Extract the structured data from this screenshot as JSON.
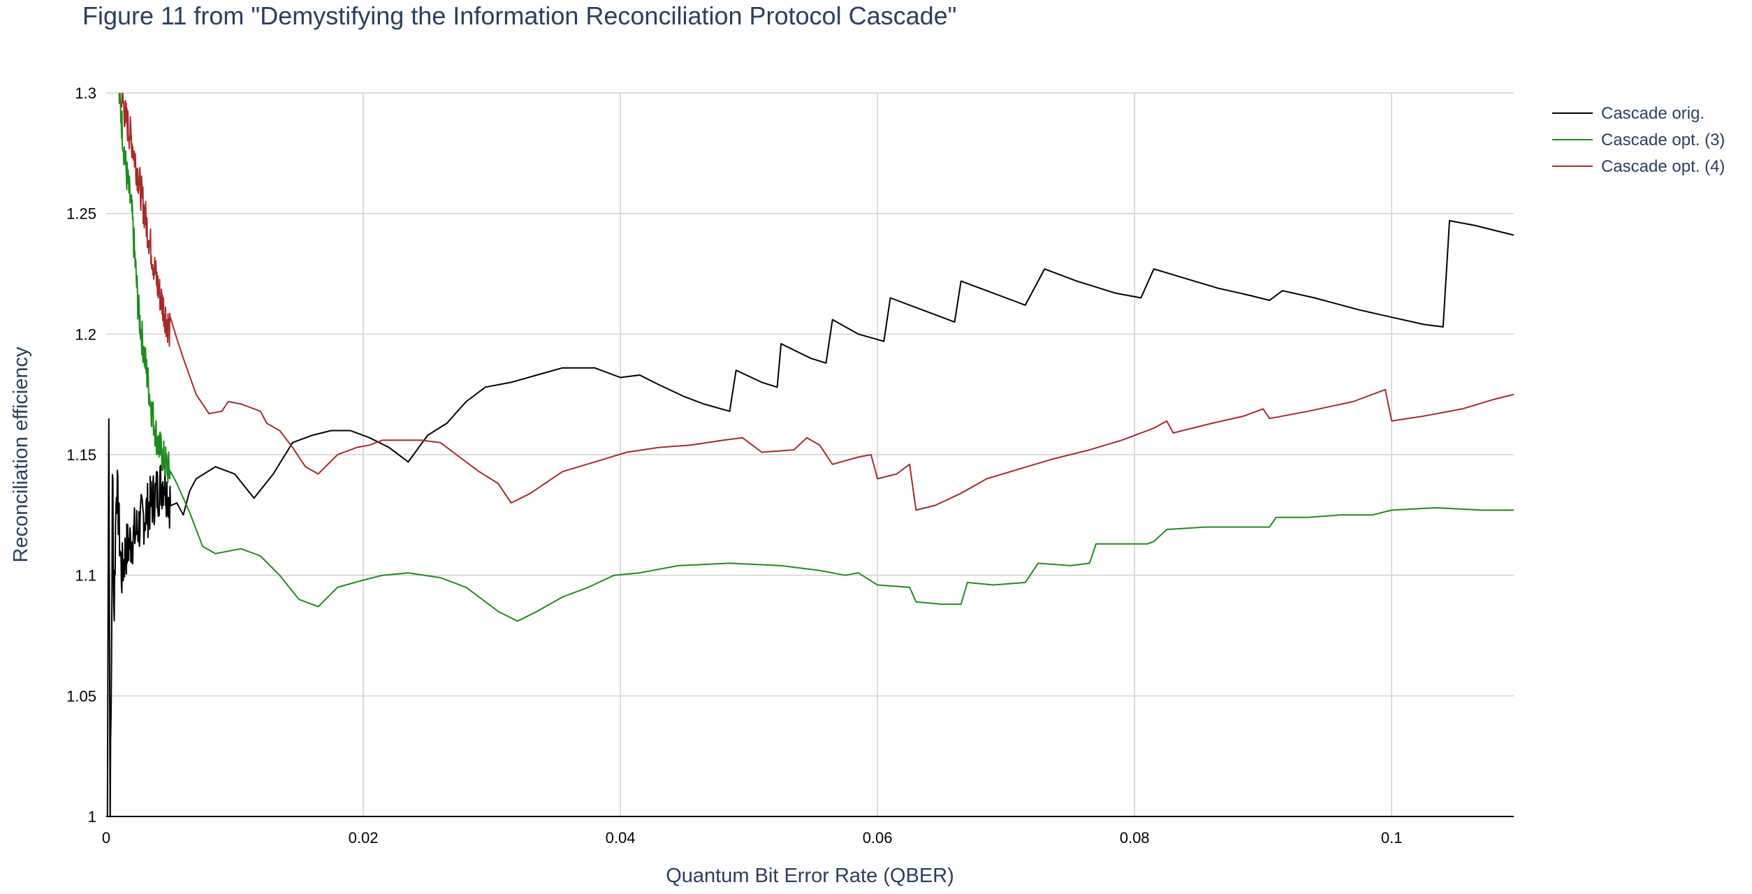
{
  "chart_data": {
    "type": "line",
    "title": "Figure 11 from \"Demystifying the Information Reconciliation Protocol Cascade\"",
    "xlabel": "Quantum Bit Error Rate (QBER)",
    "ylabel": "Reconciliation efficiency",
    "xlim": [
      0,
      0.1095
    ],
    "ylim": [
      1,
      1.3
    ],
    "x_ticks": [
      0,
      0.02,
      0.04,
      0.06,
      0.08,
      0.1
    ],
    "x_tick_labels": [
      "0",
      "0.02",
      "0.04",
      "0.06",
      "0.08",
      "0.1"
    ],
    "y_ticks": [
      1,
      1.05,
      1.1,
      1.15,
      1.2,
      1.25,
      1.3
    ],
    "y_tick_labels": [
      "1",
      "1.05",
      "1.1",
      "1.15",
      "1.2",
      "1.25",
      "1.3"
    ],
    "grid": true,
    "legend_position": "top-right",
    "series": [
      {
        "name": "Cascade orig.",
        "color": "#000000",
        "noise_until": 0.005,
        "points": [
          [
            0.0001,
            1.0
          ],
          [
            0.0002,
            1.18
          ],
          [
            0.0003,
            1.0
          ],
          [
            0.0004,
            1.05
          ],
          [
            0.0005,
            1.15
          ],
          [
            0.0006,
            1.08
          ],
          [
            0.0008,
            1.14
          ],
          [
            0.001,
            1.12
          ],
          [
            0.0012,
            1.1
          ],
          [
            0.0015,
            1.11
          ],
          [
            0.002,
            1.115
          ],
          [
            0.0025,
            1.12
          ],
          [
            0.003,
            1.125
          ],
          [
            0.0035,
            1.13
          ],
          [
            0.004,
            1.135
          ],
          [
            0.0045,
            1.14
          ],
          [
            0.005,
            1.13
          ],
          [
            0.0055,
            1.13
          ],
          [
            0.006,
            1.125
          ],
          [
            0.0065,
            1.135
          ],
          [
            0.007,
            1.14
          ],
          [
            0.0085,
            1.145
          ],
          [
            0.01,
            1.142
          ],
          [
            0.0115,
            1.132
          ],
          [
            0.013,
            1.142
          ],
          [
            0.0145,
            1.155
          ],
          [
            0.016,
            1.158
          ],
          [
            0.0175,
            1.16
          ],
          [
            0.019,
            1.16
          ],
          [
            0.0205,
            1.157
          ],
          [
            0.022,
            1.153
          ],
          [
            0.0235,
            1.147
          ],
          [
            0.025,
            1.158
          ],
          [
            0.0265,
            1.163
          ],
          [
            0.028,
            1.172
          ],
          [
            0.0295,
            1.178
          ],
          [
            0.0315,
            1.18
          ],
          [
            0.0335,
            1.183
          ],
          [
            0.0355,
            1.186
          ],
          [
            0.038,
            1.186
          ],
          [
            0.04,
            1.182
          ],
          [
            0.0415,
            1.183
          ],
          [
            0.043,
            1.179
          ],
          [
            0.045,
            1.174
          ],
          [
            0.0465,
            1.171
          ],
          [
            0.0485,
            1.168
          ],
          [
            0.049,
            1.185
          ],
          [
            0.051,
            1.18
          ],
          [
            0.0522,
            1.178
          ],
          [
            0.0525,
            1.196
          ],
          [
            0.0548,
            1.19
          ],
          [
            0.056,
            1.188
          ],
          [
            0.0565,
            1.206
          ],
          [
            0.0585,
            1.2
          ],
          [
            0.0605,
            1.197
          ],
          [
            0.061,
            1.215
          ],
          [
            0.063,
            1.211
          ],
          [
            0.066,
            1.205
          ],
          [
            0.0665,
            1.222
          ],
          [
            0.0685,
            1.218
          ],
          [
            0.0705,
            1.214
          ],
          [
            0.0715,
            1.212
          ],
          [
            0.073,
            1.227
          ],
          [
            0.0755,
            1.222
          ],
          [
            0.0785,
            1.217
          ],
          [
            0.0805,
            1.215
          ],
          [
            0.0815,
            1.227
          ],
          [
            0.084,
            1.223
          ],
          [
            0.0865,
            1.219
          ],
          [
            0.089,
            1.216
          ],
          [
            0.0905,
            1.214
          ],
          [
            0.0915,
            1.218
          ],
          [
            0.094,
            1.215
          ],
          [
            0.0975,
            1.21
          ],
          [
            0.1,
            1.207
          ],
          [
            0.1025,
            1.204
          ],
          [
            0.104,
            1.203
          ],
          [
            0.1045,
            1.247
          ],
          [
            0.1065,
            1.245
          ],
          [
            0.1095,
            1.241
          ]
        ]
      },
      {
        "name": "Cascade opt. (3)",
        "color": "#1e8b1e",
        "noise_until": 0.005,
        "points": [
          [
            0.001,
            1.3
          ],
          [
            0.0015,
            1.27
          ],
          [
            0.002,
            1.25
          ],
          [
            0.0025,
            1.21
          ],
          [
            0.003,
            1.19
          ],
          [
            0.0035,
            1.17
          ],
          [
            0.004,
            1.155
          ],
          [
            0.0045,
            1.148
          ],
          [
            0.005,
            1.142
          ],
          [
            0.0055,
            1.138
          ],
          [
            0.0065,
            1.126
          ],
          [
            0.0075,
            1.112
          ],
          [
            0.0085,
            1.109
          ],
          [
            0.0105,
            1.111
          ],
          [
            0.012,
            1.108
          ],
          [
            0.0135,
            1.1
          ],
          [
            0.015,
            1.09
          ],
          [
            0.0165,
            1.087
          ],
          [
            0.018,
            1.095
          ],
          [
            0.02,
            1.098
          ],
          [
            0.0215,
            1.1
          ],
          [
            0.0235,
            1.101
          ],
          [
            0.026,
            1.099
          ],
          [
            0.028,
            1.095
          ],
          [
            0.0305,
            1.085
          ],
          [
            0.032,
            1.081
          ],
          [
            0.0335,
            1.085
          ],
          [
            0.0355,
            1.091
          ],
          [
            0.0375,
            1.095
          ],
          [
            0.0395,
            1.1
          ],
          [
            0.0415,
            1.101
          ],
          [
            0.0445,
            1.104
          ],
          [
            0.0485,
            1.105
          ],
          [
            0.0525,
            1.104
          ],
          [
            0.0555,
            1.102
          ],
          [
            0.0575,
            1.1
          ],
          [
            0.0585,
            1.101
          ],
          [
            0.06,
            1.096
          ],
          [
            0.0625,
            1.095
          ],
          [
            0.063,
            1.089
          ],
          [
            0.065,
            1.088
          ],
          [
            0.0665,
            1.088
          ],
          [
            0.067,
            1.097
          ],
          [
            0.069,
            1.096
          ],
          [
            0.0715,
            1.097
          ],
          [
            0.0725,
            1.105
          ],
          [
            0.075,
            1.104
          ],
          [
            0.0765,
            1.105
          ],
          [
            0.077,
            1.113
          ],
          [
            0.0795,
            1.113
          ],
          [
            0.081,
            1.113
          ],
          [
            0.0815,
            1.114
          ],
          [
            0.0825,
            1.119
          ],
          [
            0.0855,
            1.12
          ],
          [
            0.0885,
            1.12
          ],
          [
            0.0905,
            1.12
          ],
          [
            0.091,
            1.124
          ],
          [
            0.0935,
            1.124
          ],
          [
            0.096,
            1.125
          ],
          [
            0.0985,
            1.125
          ],
          [
            0.1,
            1.127
          ],
          [
            0.1035,
            1.128
          ],
          [
            0.107,
            1.127
          ],
          [
            0.1095,
            1.127
          ]
        ]
      },
      {
        "name": "Cascade opt. (4)",
        "color": "#a52a2a",
        "noise_until": 0.005,
        "points": [
          [
            0.0012,
            1.3
          ],
          [
            0.0015,
            1.29
          ],
          [
            0.002,
            1.28
          ],
          [
            0.0025,
            1.265
          ],
          [
            0.003,
            1.25
          ],
          [
            0.0035,
            1.235
          ],
          [
            0.004,
            1.22
          ],
          [
            0.0045,
            1.21
          ],
          [
            0.005,
            1.2
          ],
          [
            0.0055,
            1.198
          ],
          [
            0.006,
            1.19
          ],
          [
            0.007,
            1.175
          ],
          [
            0.008,
            1.167
          ],
          [
            0.009,
            1.168
          ],
          [
            0.0095,
            1.172
          ],
          [
            0.0105,
            1.171
          ],
          [
            0.012,
            1.168
          ],
          [
            0.0125,
            1.163
          ],
          [
            0.0135,
            1.16
          ],
          [
            0.0145,
            1.153
          ],
          [
            0.0155,
            1.145
          ],
          [
            0.0165,
            1.142
          ],
          [
            0.018,
            1.15
          ],
          [
            0.0195,
            1.153
          ],
          [
            0.0205,
            1.154
          ],
          [
            0.0215,
            1.156
          ],
          [
            0.023,
            1.156
          ],
          [
            0.0245,
            1.156
          ],
          [
            0.026,
            1.155
          ],
          [
            0.0275,
            1.149
          ],
          [
            0.029,
            1.143
          ],
          [
            0.0305,
            1.138
          ],
          [
            0.0315,
            1.13
          ],
          [
            0.033,
            1.134
          ],
          [
            0.0355,
            1.143
          ],
          [
            0.038,
            1.147
          ],
          [
            0.0405,
            1.151
          ],
          [
            0.043,
            1.153
          ],
          [
            0.0455,
            1.154
          ],
          [
            0.048,
            1.156
          ],
          [
            0.0495,
            1.157
          ],
          [
            0.051,
            1.151
          ],
          [
            0.0535,
            1.152
          ],
          [
            0.0545,
            1.157
          ],
          [
            0.0555,
            1.154
          ],
          [
            0.0565,
            1.146
          ],
          [
            0.0585,
            1.149
          ],
          [
            0.0595,
            1.15
          ],
          [
            0.06,
            1.14
          ],
          [
            0.0615,
            1.142
          ],
          [
            0.0625,
            1.146
          ],
          [
            0.063,
            1.127
          ],
          [
            0.0645,
            1.129
          ],
          [
            0.0665,
            1.134
          ],
          [
            0.0685,
            1.14
          ],
          [
            0.071,
            1.144
          ],
          [
            0.0735,
            1.148
          ],
          [
            0.0765,
            1.152
          ],
          [
            0.079,
            1.156
          ],
          [
            0.0815,
            1.161
          ],
          [
            0.0825,
            1.164
          ],
          [
            0.083,
            1.159
          ],
          [
            0.086,
            1.163
          ],
          [
            0.0885,
            1.166
          ],
          [
            0.09,
            1.169
          ],
          [
            0.0905,
            1.165
          ],
          [
            0.0935,
            1.168
          ],
          [
            0.097,
            1.172
          ],
          [
            0.0995,
            1.177
          ],
          [
            0.1,
            1.164
          ],
          [
            0.1025,
            1.166
          ],
          [
            0.1055,
            1.169
          ],
          [
            0.108,
            1.173
          ],
          [
            0.1095,
            1.175
          ]
        ]
      }
    ]
  }
}
